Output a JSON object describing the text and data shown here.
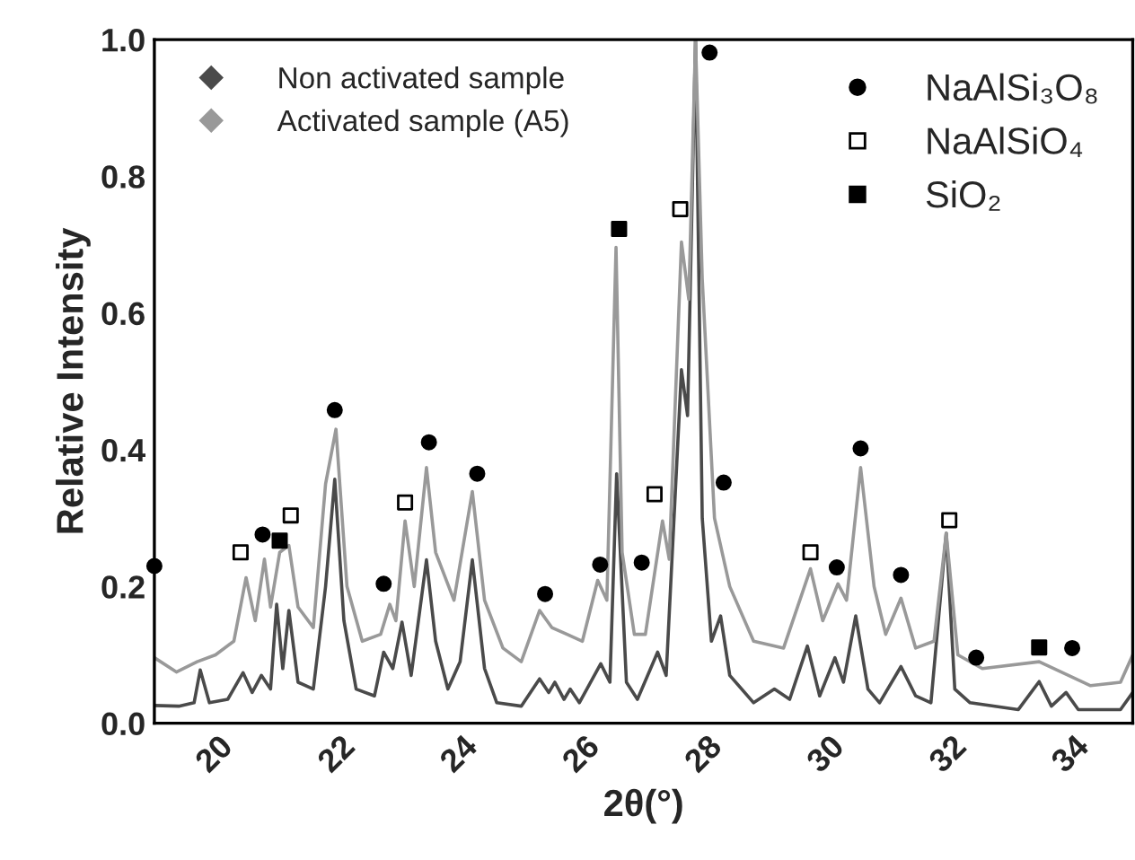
{
  "chart_data": {
    "type": "line",
    "xlabel": "2θ(°)",
    "ylabel": "Relative Intensity",
    "xlim": [
      19,
      35
    ],
    "xticks": [
      20,
      22,
      24,
      26,
      28,
      30,
      32,
      34
    ],
    "ylim": [
      0,
      1.0
    ],
    "yticks": [
      {
        "value": 0,
        "label": "0.0"
      },
      {
        "value": 0.2,
        "label": "0.2"
      },
      {
        "value": 0.4,
        "label": "0.4"
      },
      {
        "value": 0.6,
        "label": "0.6"
      },
      {
        "value": 0.8,
        "label": "0.8"
      },
      {
        "value": 1.0,
        "label": "1.0"
      }
    ],
    "grid": false,
    "legend": "top left",
    "series": [
      {
        "name": "Non activated sample",
        "color": "#4a4a4a",
        "marker": "none",
        "line_style": "solid",
        "x": [
          19.0,
          19.4,
          19.65,
          19.75,
          19.9,
          20.2,
          20.45,
          20.6,
          20.75,
          20.9,
          21.0,
          21.1,
          21.2,
          21.35,
          21.6,
          21.8,
          21.95,
          22.1,
          22.3,
          22.6,
          22.75,
          22.9,
          23.05,
          23.2,
          23.45,
          23.6,
          23.8,
          24.0,
          24.2,
          24.4,
          24.6,
          25.0,
          25.3,
          25.45,
          25.55,
          25.7,
          25.8,
          25.95,
          26.3,
          26.45,
          26.56,
          26.72,
          26.9,
          27.23,
          27.37,
          27.62,
          27.72,
          27.85,
          27.96,
          28.11,
          28.26,
          28.41,
          28.8,
          29.14,
          29.39,
          29.68,
          29.88,
          30.13,
          30.27,
          30.47,
          30.67,
          30.86,
          31.21,
          31.45,
          31.7,
          31.95,
          32.09,
          32.34,
          33.13,
          33.47,
          33.67,
          33.91,
          34.11,
          34.8,
          35.0
        ],
        "values": [
          0.026,
          0.025,
          0.03,
          0.078,
          0.03,
          0.035,
          0.074,
          0.045,
          0.07,
          0.05,
          0.174,
          0.08,
          0.165,
          0.06,
          0.05,
          0.2,
          0.357,
          0.15,
          0.05,
          0.04,
          0.104,
          0.08,
          0.148,
          0.07,
          0.239,
          0.12,
          0.05,
          0.09,
          0.239,
          0.08,
          0.03,
          0.025,
          0.065,
          0.045,
          0.06,
          0.035,
          0.05,
          0.03,
          0.087,
          0.06,
          0.365,
          0.06,
          0.035,
          0.104,
          0.07,
          0.517,
          0.45,
          1.0,
          0.3,
          0.12,
          0.157,
          0.07,
          0.03,
          0.05,
          0.035,
          0.113,
          0.04,
          0.096,
          0.06,
          0.157,
          0.05,
          0.03,
          0.083,
          0.04,
          0.03,
          0.278,
          0.05,
          0.03,
          0.02,
          0.061,
          0.025,
          0.045,
          0.02,
          0.02,
          0.045
        ]
      },
      {
        "name": "Activated sample (A5)",
        "color": "#999999",
        "marker": "none",
        "line_style": "solid",
        "x": [
          19.0,
          19.36,
          19.7,
          20.0,
          20.3,
          20.5,
          20.65,
          20.8,
          20.9,
          21.05,
          21.2,
          21.35,
          21.6,
          21.8,
          21.97,
          22.15,
          22.4,
          22.7,
          22.85,
          22.95,
          23.1,
          23.25,
          23.45,
          23.6,
          23.9,
          24.2,
          24.4,
          24.7,
          25.0,
          25.3,
          25.5,
          25.75,
          26.0,
          26.25,
          26.4,
          26.55,
          26.65,
          26.85,
          27.03,
          27.31,
          27.42,
          27.62,
          27.74,
          27.85,
          27.96,
          28.16,
          28.41,
          28.8,
          29.29,
          29.73,
          29.93,
          30.18,
          30.32,
          30.55,
          30.77,
          30.96,
          31.21,
          31.45,
          31.75,
          31.95,
          32.14,
          32.54,
          33.47,
          34.31,
          34.8,
          35.0
        ],
        "values": [
          0.096,
          0.075,
          0.09,
          0.1,
          0.12,
          0.213,
          0.15,
          0.24,
          0.17,
          0.25,
          0.26,
          0.17,
          0.14,
          0.35,
          0.43,
          0.2,
          0.12,
          0.13,
          0.174,
          0.15,
          0.296,
          0.2,
          0.374,
          0.25,
          0.18,
          0.339,
          0.18,
          0.11,
          0.09,
          0.165,
          0.14,
          0.13,
          0.12,
          0.209,
          0.18,
          0.696,
          0.25,
          0.13,
          0.13,
          0.296,
          0.24,
          0.704,
          0.62,
          1.0,
          0.65,
          0.3,
          0.2,
          0.12,
          0.11,
          0.226,
          0.15,
          0.204,
          0.18,
          0.374,
          0.2,
          0.13,
          0.183,
          0.11,
          0.12,
          0.278,
          0.1,
          0.08,
          0.09,
          0.055,
          0.06,
          0.1
        ]
      },
      {
        "name": "NaAlSi₃O₈",
        "type": "scatter",
        "color": "#000000",
        "marker": "circle",
        "x": [
          19.0,
          20.77,
          21.95,
          22.75,
          23.49,
          24.28,
          25.39,
          26.29,
          26.97,
          28.08,
          28.31,
          30.16,
          30.55,
          31.21,
          32.44,
          34.01
        ],
        "values": [
          0.23,
          0.276,
          0.458,
          0.204,
          0.411,
          0.365,
          0.189,
          0.232,
          0.235,
          0.981,
          0.352,
          0.228,
          0.402,
          0.217,
          0.096,
          0.11
        ]
      },
      {
        "name": "NaAlSiO₄",
        "type": "scatter",
        "color": "#ffffff",
        "marker": "square",
        "x": [
          20.41,
          21.23,
          23.1,
          27.18,
          27.6,
          29.73,
          32.0
        ],
        "values": [
          0.25,
          0.304,
          0.323,
          0.335,
          0.752,
          0.25,
          0.297
        ]
      },
      {
        "name": "SiO₂",
        "type": "scatter",
        "color": "#000000",
        "marker": "square",
        "x": [
          21.05,
          26.6,
          33.47
        ],
        "values": [
          0.267,
          0.723,
          0.111
        ]
      }
    ]
  }
}
